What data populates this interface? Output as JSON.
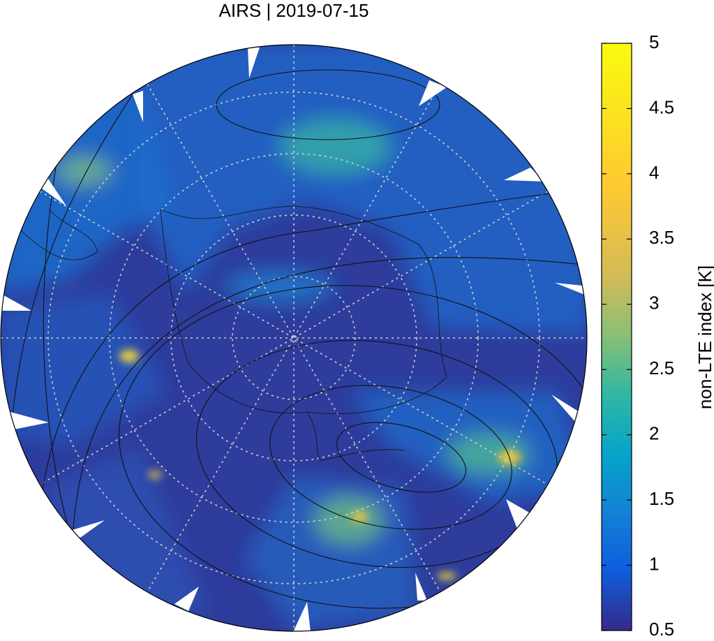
{
  "title": "AIRS | 2019-07-15",
  "colorbar": {
    "label": "non-LTE index [K]",
    "range": [
      0.5,
      5
    ],
    "ticks": [
      0.5,
      1,
      1.5,
      2,
      2.5,
      3,
      3.5,
      4,
      4.5,
      5
    ]
  }
}
